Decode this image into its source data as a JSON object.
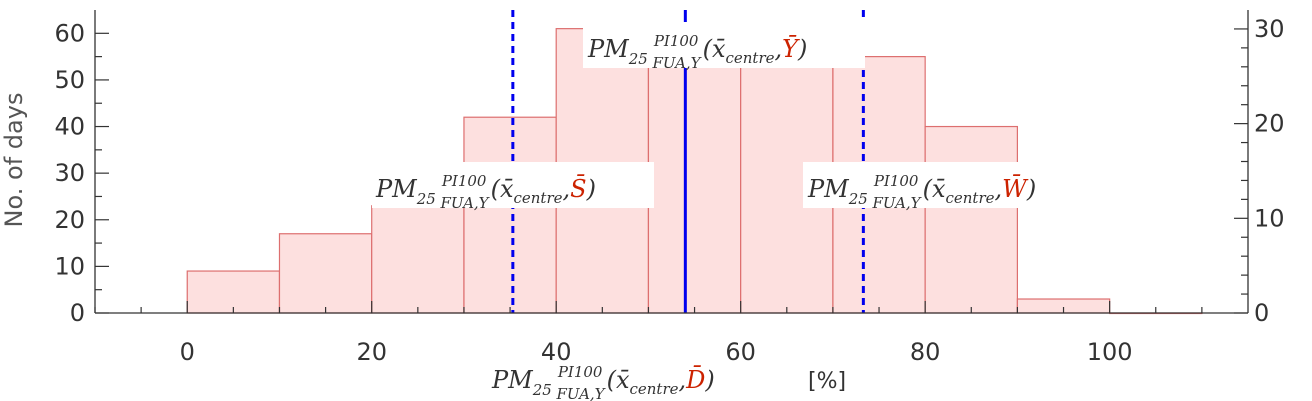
{
  "colors": {
    "bar_fill": "#fde0df",
    "bar_edge": "#dd6f6f",
    "mean_line": "#0000ee",
    "accent_red": "#cc2200",
    "axis": "#333333"
  },
  "chart_data": {
    "type": "bar",
    "bin_edges": [
      0,
      10,
      20,
      30,
      40,
      50,
      60,
      70,
      80,
      90,
      100,
      110
    ],
    "values": [
      9,
      17,
      23,
      42,
      61,
      53,
      53,
      55,
      40,
      3,
      0
    ],
    "xlim": [
      -10,
      115
    ],
    "ylim": [
      0,
      65
    ],
    "xticks": [
      0,
      20,
      40,
      60,
      80,
      100
    ],
    "yticks": [
      0,
      10,
      20,
      30,
      40,
      50,
      60
    ],
    "y2ticks": [
      0,
      10,
      20,
      30
    ],
    "y2lim": [
      0,
      32
    ],
    "ylabel": "No. of days",
    "xlabel": {
      "base": "PM",
      "num": "25",
      "sup": "PI100",
      "sub": "FUA,Y",
      "args": "(x̄",
      "centre": "centre",
      "comma": ",",
      "var": "D̄",
      "close": ")",
      "unit": "[%]"
    },
    "vlines": [
      {
        "x": 54.0,
        "style": "solid",
        "label": {
          "base": "PM",
          "num": "25",
          "sup": "PI100",
          "sub": "FUA,Y",
          "args": "(x̄",
          "centre": "centre",
          "comma": ",",
          "var": "Ȳ",
          "close": ")"
        }
      },
      {
        "x": 35.3,
        "style": "dashed",
        "label": {
          "base": "PM",
          "num": "25",
          "sup": "PI100",
          "sub": "FUA,Y",
          "args": "(x̄",
          "centre": "centre",
          "comma": ",",
          "var": "S̄",
          "close": ")"
        }
      },
      {
        "x": 73.3,
        "style": "dashed",
        "label": {
          "base": "PM",
          "num": "25",
          "sup": "PI100",
          "sub": "FUA,Y",
          "args": "(x̄",
          "centre": "centre",
          "comma": ",",
          "var": "W̄",
          "close": ")"
        }
      }
    ],
    "grid": false,
    "legend": "none"
  }
}
